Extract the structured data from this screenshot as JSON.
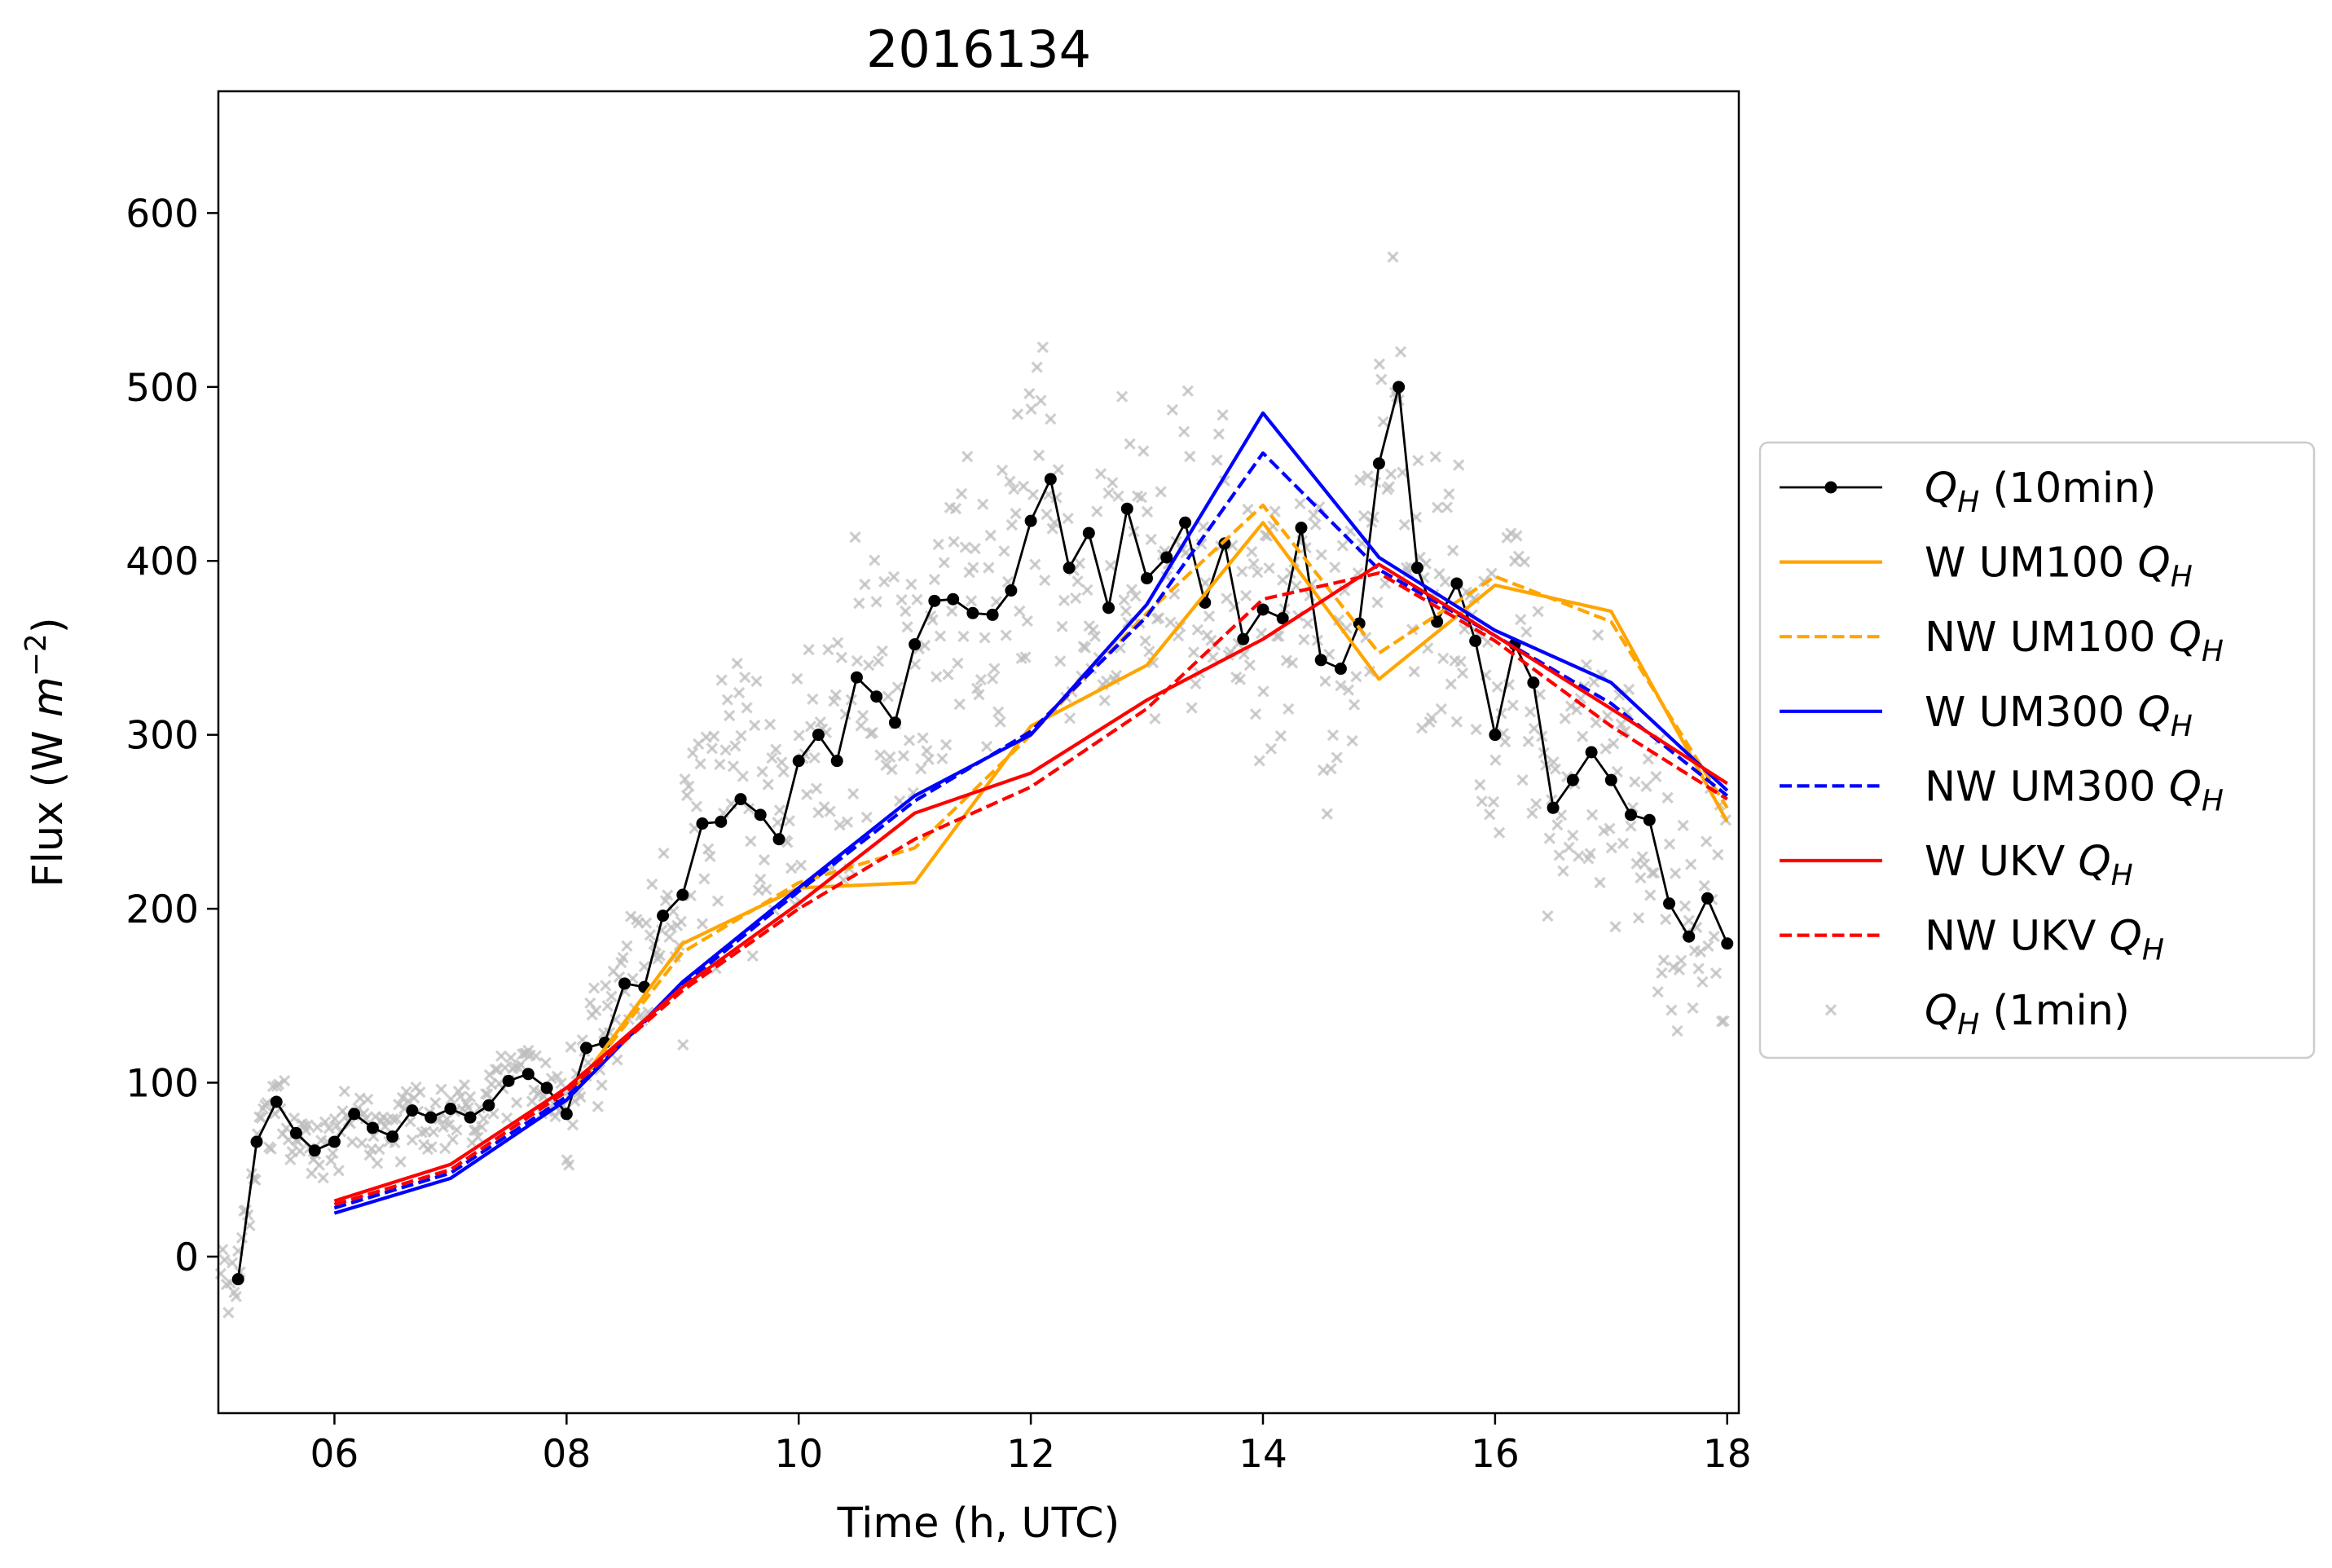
{
  "chart_data": {
    "type": "line",
    "title": "2016134",
    "xlabel": "Time (h, UTC)",
    "ylabel": "Flux (W m⁻²)",
    "xlim": [
      5.0,
      18.1
    ],
    "ylim": [
      -90,
      670
    ],
    "x_ticks": [
      6,
      8,
      10,
      12,
      14,
      16,
      18
    ],
    "x_tick_labels": [
      "06",
      "08",
      "10",
      "12",
      "14",
      "16",
      "18"
    ],
    "y_ticks": [
      0,
      100,
      200,
      300,
      400,
      500,
      600
    ],
    "y_tick_labels": [
      "0",
      "100",
      "200",
      "300",
      "400",
      "500",
      "600"
    ],
    "grid": false,
    "legend_position": "right-outside",
    "series": [
      {
        "name": "QH (10min)",
        "legend": {
          "sym": "Q",
          "sub": "H",
          "suffix": " (10min)"
        },
        "color": "#000000",
        "style": "solid-markers",
        "x": [
          5.17,
          5.33,
          5.5,
          5.67,
          5.83,
          6.0,
          6.17,
          6.33,
          6.5,
          6.67,
          6.83,
          7.0,
          7.17,
          7.33,
          7.5,
          7.67,
          7.83,
          8.0,
          8.17,
          8.33,
          8.5,
          8.67,
          8.83,
          9.0,
          9.17,
          9.33,
          9.5,
          9.67,
          9.83,
          10.0,
          10.17,
          10.33,
          10.5,
          10.67,
          10.83,
          11.0,
          11.17,
          11.33,
          11.5,
          11.67,
          11.83,
          12.0,
          12.17,
          12.33,
          12.5,
          12.67,
          12.83,
          13.0,
          13.17,
          13.33,
          13.5,
          13.67,
          13.83,
          14.0,
          14.17,
          14.33,
          14.5,
          14.67,
          14.83,
          15.0,
          15.17,
          15.33,
          15.5,
          15.67,
          15.83,
          16.0,
          16.17,
          16.33,
          16.5,
          16.67,
          16.83,
          17.0,
          17.17,
          17.33,
          17.5,
          17.67,
          17.83,
          18.0
        ],
        "y": [
          -13,
          66,
          89,
          71,
          61,
          66,
          82,
          74,
          69,
          84,
          80,
          85,
          80,
          87,
          101,
          105,
          97,
          82,
          120,
          123,
          157,
          155,
          196,
          208,
          249,
          250,
          263,
          254,
          240,
          285,
          300,
          285,
          333,
          322,
          307,
          352,
          377,
          378,
          370,
          369,
          383,
          423,
          447,
          396,
          416,
          373,
          430,
          390,
          402,
          422,
          376,
          410,
          355,
          372,
          367,
          419,
          343,
          338,
          364,
          456,
          500,
          396,
          365,
          387,
          354,
          300,
          352,
          330,
          258,
          274,
          290,
          274,
          254,
          251,
          203,
          184,
          206,
          180
        ]
      },
      {
        "name": "W UM100 QH",
        "legend": {
          "sym": "W UM100 Q",
          "sub": "H",
          "suffix": ""
        },
        "color": "#FFA500",
        "style": "solid",
        "x": [
          8,
          9,
          10,
          11,
          12,
          13,
          14,
          15,
          16,
          17,
          18
        ],
        "y": [
          90,
          180,
          212,
          215,
          305,
          340,
          422,
          332,
          386,
          371,
          250
        ]
      },
      {
        "name": "NW UM100 QH",
        "legend": {
          "sym": "NW UM100 Q",
          "sub": "H",
          "suffix": ""
        },
        "color": "#FFA500",
        "style": "dashed",
        "x": [
          8,
          9,
          10,
          11,
          12,
          13,
          14,
          15,
          16,
          17,
          18
        ],
        "y": [
          90,
          175,
          215,
          235,
          300,
          370,
          432,
          347,
          391,
          365,
          258
        ]
      },
      {
        "name": "W UM300 QH",
        "legend": {
          "sym": "W UM300 Q",
          "sub": "H",
          "suffix": ""
        },
        "color": "#0000FF",
        "style": "solid",
        "x": [
          6,
          7,
          8,
          9,
          10,
          11,
          12,
          13,
          14,
          15,
          16,
          17,
          18
        ],
        "y": [
          25,
          45,
          90,
          158,
          212,
          265,
          300,
          375,
          485,
          402,
          360,
          330,
          268
        ]
      },
      {
        "name": "NW UM300 QH",
        "legend": {
          "sym": "NW UM300 Q",
          "sub": "H",
          "suffix": ""
        },
        "color": "#0000FF",
        "style": "dashed",
        "x": [
          6,
          7,
          8,
          9,
          10,
          11,
          12,
          13,
          14,
          15,
          16,
          17,
          18
        ],
        "y": [
          28,
          48,
          92,
          156,
          210,
          262,
          302,
          368,
          462,
          395,
          357,
          318,
          265
        ]
      },
      {
        "name": "W UKV QH",
        "legend": {
          "sym": "W UKV Q",
          "sub": "H",
          "suffix": ""
        },
        "color": "#FF0000",
        "style": "solid",
        "x": [
          6,
          7,
          8,
          9,
          10,
          11,
          12,
          13,
          14,
          15,
          16,
          17,
          18
        ],
        "y": [
          32,
          53,
          97,
          155,
          203,
          255,
          278,
          320,
          355,
          398,
          357,
          315,
          272
        ]
      },
      {
        "name": "NW UKV QH",
        "legend": {
          "sym": "NW UKV Q",
          "sub": "H",
          "suffix": ""
        },
        "color": "#FF0000",
        "style": "dashed",
        "x": [
          6,
          7,
          8,
          9,
          10,
          11,
          12,
          13,
          14,
          15,
          16,
          17,
          18
        ],
        "y": [
          30,
          50,
          95,
          153,
          200,
          240,
          270,
          315,
          378,
          393,
          354,
          305,
          263
        ]
      },
      {
        "name": "QH (1min)",
        "legend": {
          "sym": "Q",
          "sub": "H",
          "suffix": " (1min)"
        },
        "color": "#BBBBBB",
        "style": "scatter-x",
        "generated": true
      }
    ]
  }
}
